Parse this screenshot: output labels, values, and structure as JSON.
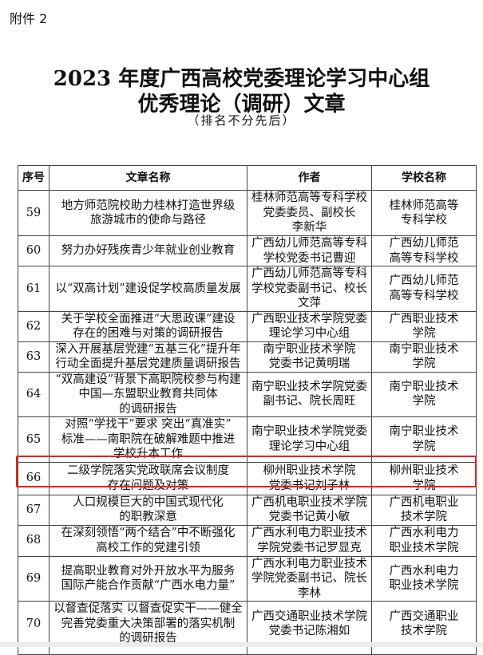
{
  "annex": "附件 2",
  "title_line1": "2023 年度广西高校党委理论学习中心组",
  "title_line2": "优秀理论（调研）文章",
  "subtitle": "（排名不分先后）",
  "table": {
    "headers": [
      "序号",
      "文章名称",
      "作者",
      "学校名称"
    ],
    "rows": [
      {
        "no": "59",
        "title": [
          "地方师范院校助力桂林打造世界级",
          "旅游城市的使命与路径"
        ],
        "author": [
          "桂林师范高等专科学校",
          "党委委员、副校长",
          "李新华"
        ],
        "school": [
          "桂林师范高等",
          "专科学校"
        ]
      },
      {
        "no": "60",
        "title": [
          "努力办好残疾青少年就业创业教育"
        ],
        "author": [
          "广西幼儿师范高等专科",
          "学校党委书记曹迎"
        ],
        "school": [
          "广西幼儿师范",
          "高等专科学校"
        ]
      },
      {
        "no": "61",
        "title": [
          "以“双高计划”建设促学校高质量发展"
        ],
        "author": [
          "广西幼儿师范高等专科",
          "学校党委副书记、校长",
          "文萍"
        ],
        "school": [
          "广西幼儿师范",
          "高等专科学校"
        ]
      },
      {
        "no": "62",
        "title": [
          "关于学校全面推进“大思政课”建设",
          "存在的困难与对策的调研报告"
        ],
        "author": [
          "广西职业技术学院党委",
          "理论学习中心组"
        ],
        "school": [
          "广西职业技术",
          "学院"
        ]
      },
      {
        "no": "63",
        "title": [
          "深入开展基层党建“五基三化”提升年",
          "行动全面提升基层党建质量调研报告"
        ],
        "author": [
          "南宁职业技术学院",
          "党委书记黄明瑞"
        ],
        "school": [
          "南宁职业技术",
          "学院"
        ]
      },
      {
        "no": "64",
        "title": [
          "“双高建设”背景下高职院校参与构建",
          "中国—东盟职业教育共同体",
          "的调研报告"
        ],
        "author": [
          "南宁职业技术学院党委",
          "副书记、院长周旺"
        ],
        "school": [
          "南宁职业技术",
          "学院"
        ]
      },
      {
        "no": "65",
        "title": [
          "对照“学找干”要求 突出“真准实”",
          "标准——南职院在破解难题中推进",
          "学校升本工作"
        ],
        "author": [
          "南宁职业技术学院党委",
          "理论学习中心组"
        ],
        "school": [
          "南宁职业技术",
          "学院"
        ]
      },
      {
        "no": "66",
        "title": [
          "二级学院落实党政联席会议制度",
          "存在问题及对策"
        ],
        "author": [
          "柳州职业技术学院",
          "党委书记刘子林"
        ],
        "school": [
          "柳州职业技术",
          "学院"
        ]
      },
      {
        "no": "67",
        "title": [
          "人口规模巨大的中国式现代化",
          "的职教深意"
        ],
        "author": [
          "广西机电职业技术学院",
          "党委书记黄小敏"
        ],
        "school": [
          "广西机电职业",
          "技术学院"
        ]
      },
      {
        "no": "68",
        "title": [
          "在深刻领悟“两个结合”中不断强化",
          "高校工作的党建引领"
        ],
        "author": [
          "广西水利电力职业技术",
          "学院党委书记罗显克"
        ],
        "school": [
          "广西水利电力",
          "职业技术学院"
        ]
      },
      {
        "no": "69",
        "title": [
          "提高职业教育对外开放水平为服务",
          "国际产能合作贡献“广西水电力量”"
        ],
        "author": [
          "广西水利电力职业技术",
          "学院党委副书记、院长",
          "李林"
        ],
        "school": [
          "广西水利电力",
          "职业技术学院"
        ]
      },
      {
        "no": "70",
        "title": [
          "以督查促落实 以督查促实干——健全",
          "完善党委重大决策部署的落实机制",
          "的调研报告"
        ],
        "author": [
          "广西交通职业技术学院",
          "党委书记陈湘如"
        ],
        "school": [
          "广西交通职业",
          "技术学院"
        ]
      }
    ],
    "highlighted_row": "66"
  },
  "colors": {
    "highlight": "#e8201b"
  }
}
